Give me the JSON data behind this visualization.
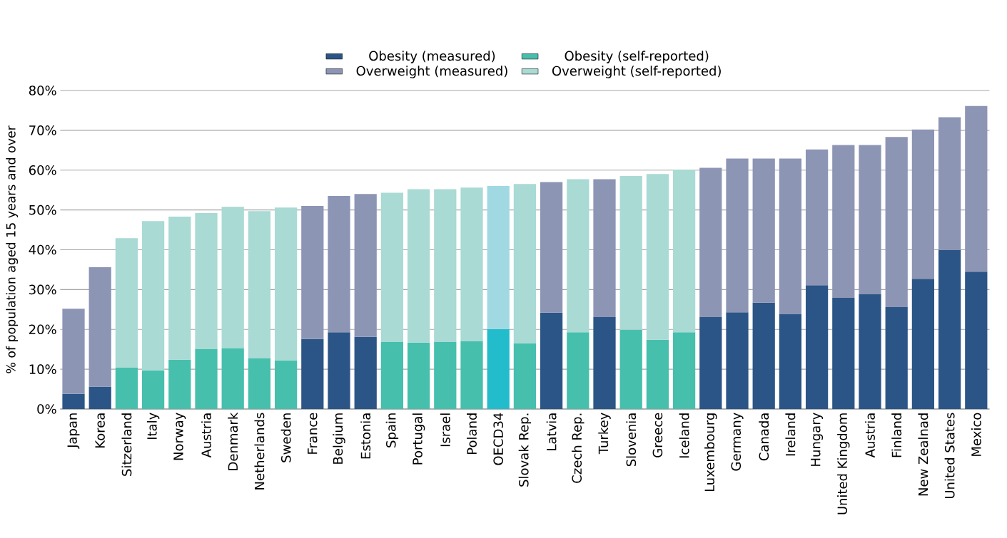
{
  "chart_data": {
    "type": "bar",
    "stacked": true,
    "categories": [
      "Japan",
      "Korea",
      "Sitzerland",
      "Italy",
      "Norway",
      "Austria",
      "Denmark",
      "Netherlands",
      "Sweden",
      "France",
      "Belgium",
      "Estonia",
      "Spain",
      "Portugal",
      "Israel",
      "Poland",
      "OECD34",
      "Slovak Rep.",
      "Latvia",
      "Czech Rep.",
      "Turkey",
      "Slovenia",
      "Greece",
      "Iceland",
      "Luxembourg",
      "Germany",
      "Canada",
      "Ireland",
      "Hungary",
      "United Kingdom",
      "Austria",
      "Finland",
      "New Zealnad",
      "United States",
      "Mexico"
    ],
    "ylabel": "% of population aged 15 years and over",
    "ylim": [
      0,
      80
    ],
    "yticks": [
      {
        "value": 0,
        "label": "0%"
      },
      {
        "value": 10,
        "label": "10%"
      },
      {
        "value": 20,
        "label": "20%"
      },
      {
        "value": 30,
        "label": "30%"
      },
      {
        "value": 40,
        "label": "40%"
      },
      {
        "value": 50,
        "label": "50%"
      },
      {
        "value": 60,
        "label": "60%"
      },
      {
        "value": 70,
        "label": "70%"
      },
      {
        "value": 80,
        "label": "80%"
      }
    ],
    "grid": "y",
    "legend": "top",
    "series": [
      {
        "name": "Obesity (measured)",
        "color": "#2b5586",
        "values": [
          3.8,
          5.6,
          null,
          null,
          null,
          null,
          null,
          null,
          null,
          17.6,
          19.3,
          18.1,
          null,
          null,
          null,
          null,
          null,
          null,
          24.2,
          null,
          23.1,
          null,
          null,
          null,
          23.1,
          24.3,
          26.7,
          23.8,
          31.1,
          27.9,
          28.8,
          25.6,
          32.7,
          39.9,
          34.5
        ]
      },
      {
        "name": "Obesity (self-reported)",
        "color": "#46bfad",
        "colors": [
          "#46bfad",
          "#46bfad",
          "#46bfad",
          "#46bfad",
          "#46bfad",
          "#46bfad",
          "#46bfad",
          "#46bfad",
          "#46bfad",
          "#46bfad",
          "#46bfad",
          "#46bfad",
          "#46bfad",
          "#46bfad",
          "#46bfad",
          "#46bfad",
          "#22bccc",
          "#46bfad",
          "#46bfad",
          "#46bfad",
          "#46bfad",
          "#46bfad",
          "#46bfad",
          "#46bfad",
          "#46bfad",
          "#46bfad",
          "#46bfad",
          "#46bfad",
          "#46bfad",
          "#46bfad",
          "#46bfad",
          "#46bfad",
          "#46bfad",
          "#46bfad",
          "#46bfad"
        ],
        "values": [
          null,
          null,
          10.4,
          9.7,
          12.4,
          15.1,
          15.2,
          12.7,
          12.2,
          null,
          null,
          null,
          16.8,
          16.7,
          16.8,
          17.0,
          20.1,
          16.5,
          null,
          19.3,
          null,
          19.9,
          17.4,
          19.3,
          null,
          null,
          null,
          null,
          null,
          null,
          null,
          null,
          null,
          null,
          null
        ]
      },
      {
        "name": "Overweight (measured)",
        "color": "#8d95b5",
        "values": [
          21.4,
          30.0,
          null,
          null,
          null,
          null,
          null,
          null,
          null,
          33.4,
          34.2,
          35.9,
          null,
          null,
          null,
          null,
          null,
          null,
          32.8,
          null,
          34.6,
          null,
          null,
          null,
          37.5,
          38.6,
          36.2,
          39.1,
          34.1,
          38.4,
          37.5,
          42.7,
          37.5,
          33.4,
          41.6
        ]
      },
      {
        "name": "Overweight (self-reported)",
        "color": "#a9dad4",
        "colors": [
          "#a9dad4",
          "#a9dad4",
          "#a9dad4",
          "#a9dad4",
          "#a9dad4",
          "#a9dad4",
          "#a9dad4",
          "#a9dad4",
          "#a9dad4",
          "#a9dad4",
          "#a9dad4",
          "#a9dad4",
          "#a9dad4",
          "#a9dad4",
          "#a9dad4",
          "#a9dad4",
          "#a1d9e3",
          "#a9dad4",
          "#a9dad4",
          "#a9dad4",
          "#a9dad4",
          "#a9dad4",
          "#a9dad4",
          "#a9dad4",
          "#a9dad4",
          "#a9dad4",
          "#a9dad4",
          "#a9dad4",
          "#a9dad4",
          "#a9dad4",
          "#a9dad4",
          "#a9dad4",
          "#a9dad4",
          "#a9dad4",
          "#a9dad4"
        ],
        "values": [
          null,
          null,
          32.5,
          37.5,
          35.9,
          34.1,
          35.6,
          37.0,
          38.4,
          null,
          null,
          null,
          37.5,
          38.5,
          38.4,
          38.6,
          35.9,
          40.0,
          null,
          38.4,
          null,
          38.6,
          41.6,
          40.8,
          null,
          null,
          null,
          null,
          null,
          null,
          null,
          null,
          null,
          null,
          null
        ]
      }
    ]
  }
}
